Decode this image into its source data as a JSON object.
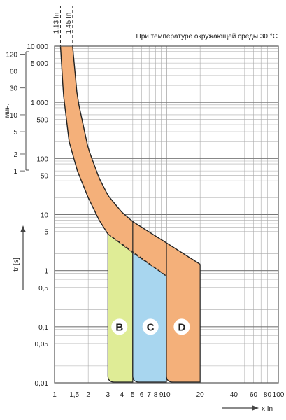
{
  "chart_data": {
    "type": "area",
    "title": "",
    "note": "При температуре окружающей среды 30 °C",
    "x_scale": "log",
    "y_scale": "log",
    "xlim": [
      1,
      100
    ],
    "ylim": [
      0.01,
      10000
    ],
    "xlabel": "x In",
    "ylabel": "tr [s]",
    "min_axis_label": "мин.",
    "x_ticks": [
      "1",
      "1,5",
      "2",
      "3",
      "4",
      "5",
      "6",
      "7",
      "8",
      "9",
      "10",
      "20",
      "40",
      "60",
      "80",
      "100"
    ],
    "y_ticks": [
      "10 000",
      "5 000",
      "1 000",
      "500",
      "100",
      "50",
      "10",
      "5",
      "1",
      "0,5",
      "0,1",
      "0,05",
      "0,01"
    ],
    "y_ticks_minutes": [
      "120",
      "60",
      "30",
      "10",
      "5",
      "2",
      "1"
    ],
    "vertical_markers": [
      {
        "label": "1,13 In",
        "x": 1.13
      },
      {
        "label": "1,45 In",
        "x": 1.45
      }
    ],
    "thermal_band": {
      "lower_x": [
        1.13,
        1.2,
        1.35,
        1.6,
        2.0,
        2.5,
        3.0
      ],
      "lower_y": [
        10000,
        1400,
        200,
        60,
        20,
        8,
        4.5
      ],
      "upper_x": [
        1.45,
        1.6,
        2.0,
        2.5,
        3.0,
        4.0,
        5.0
      ],
      "upper_y": [
        10000,
        1200,
        150,
        45,
        22,
        11,
        7.5
      ]
    },
    "tripping_zones": [
      {
        "name": "B",
        "x_start": 3,
        "x_end": 5,
        "color": "#dfec96"
      },
      {
        "name": "C",
        "x_start": 5,
        "x_end": 10,
        "color": "#a8d6ef"
      },
      {
        "name": "D",
        "x_start": 10,
        "x_end": 20,
        "color": "#f4b07a"
      }
    ],
    "band_color": "#f4b07a",
    "grid": true
  }
}
